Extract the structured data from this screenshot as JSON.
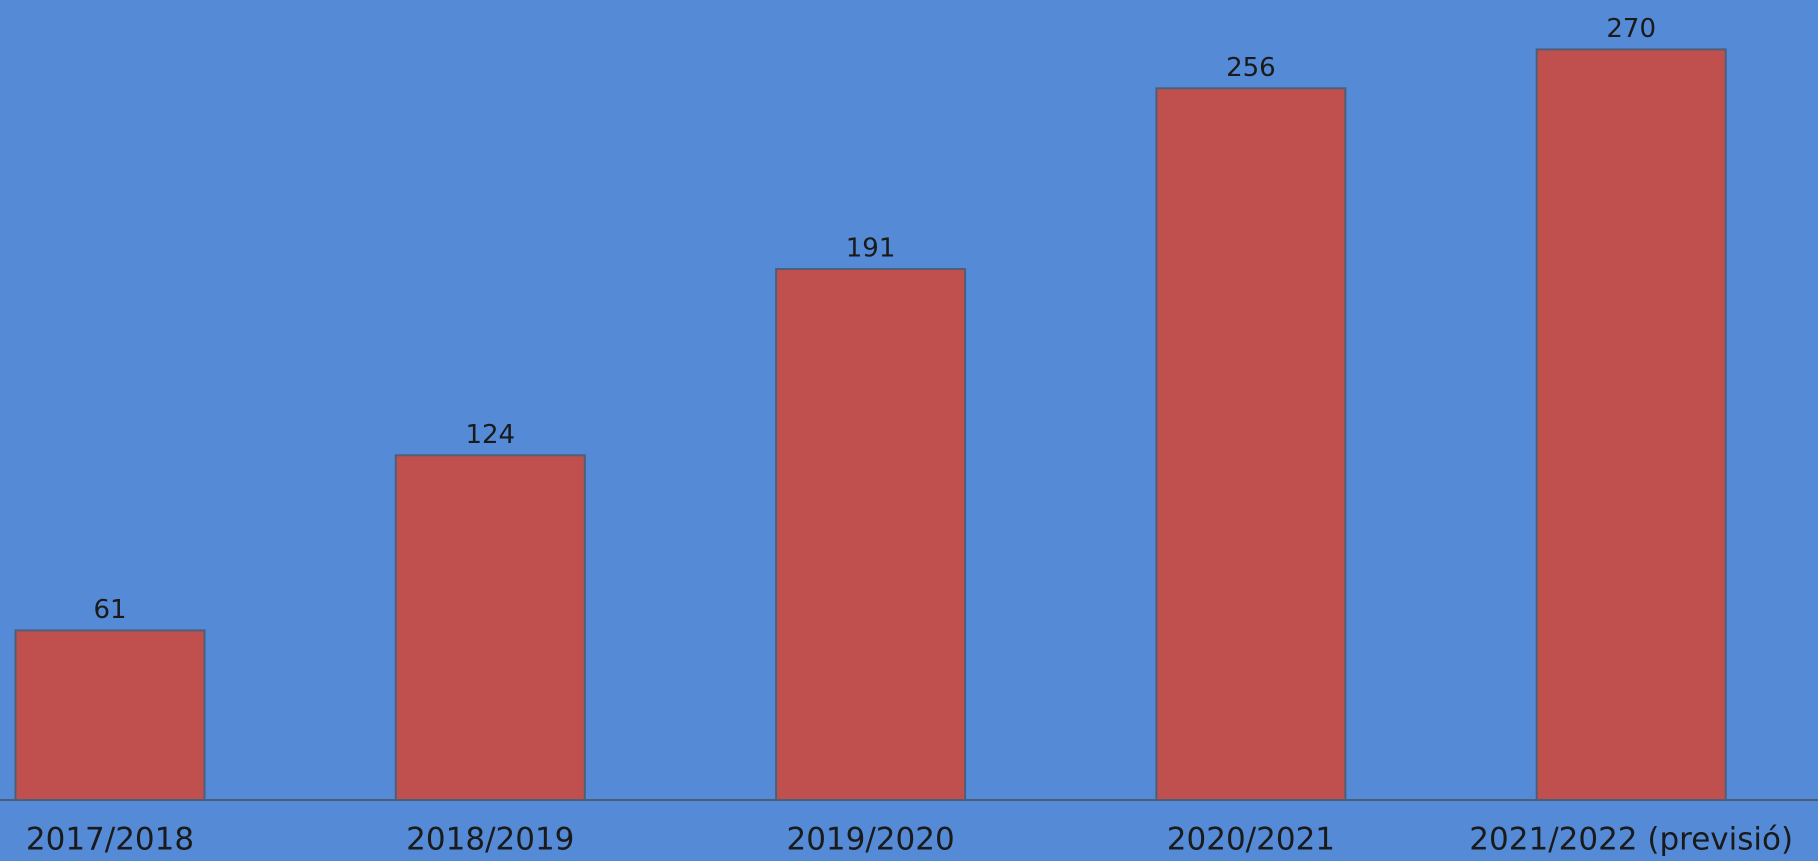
{
  "chart_data": {
    "type": "bar",
    "categories": [
      "2017/2018",
      "2018/2019",
      "2019/2020",
      "2020/2021",
      "2021/2022 (previsió)"
    ],
    "values": [
      61,
      124,
      191,
      256,
      270
    ],
    "color": "#c0504d",
    "background": "#548ad6"
  }
}
